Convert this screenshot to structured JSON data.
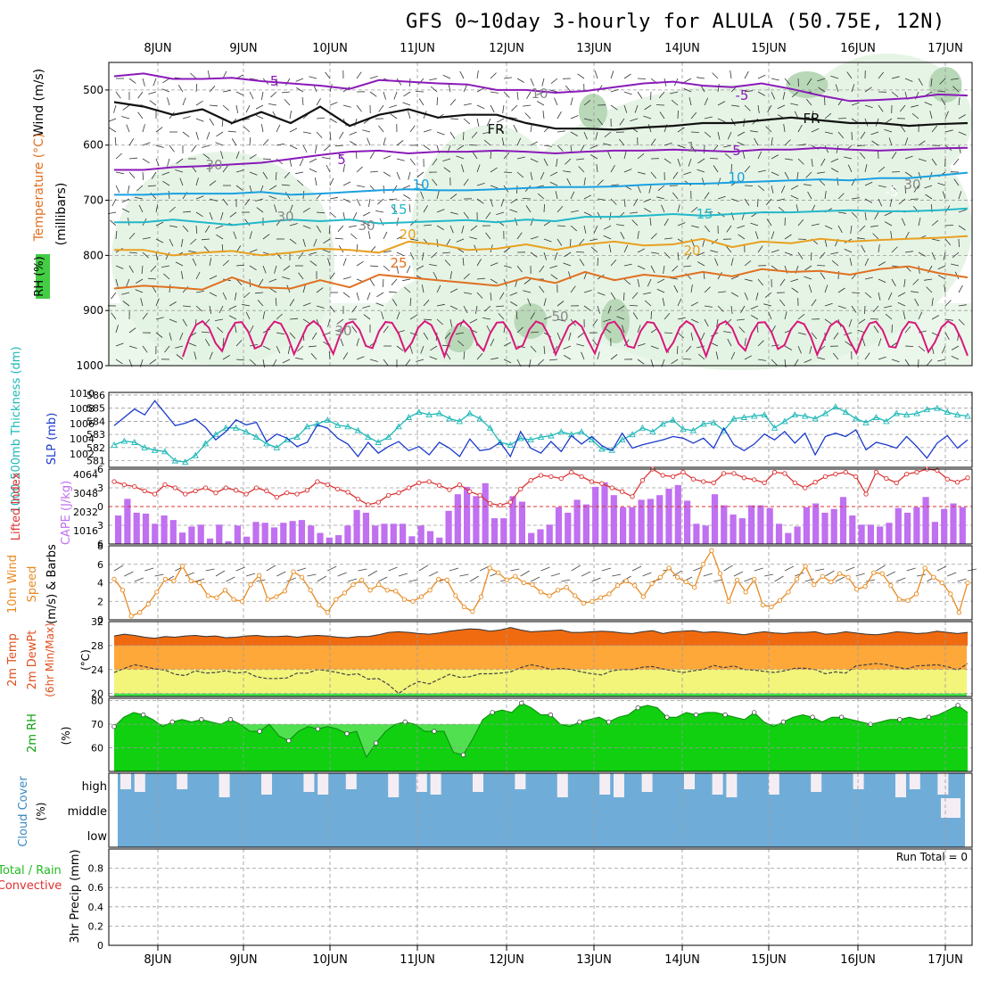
{
  "title": "GFS 0~10day 3-hourly for ALULA (50.75E, 12N)",
  "colors": {
    "grid": "#9a9a9a",
    "purple": "#8a1ab8",
    "black": "#111111",
    "blue": "#1aa0e0",
    "cyan": "#22b8c8",
    "orange": "#e8a020",
    "darkorange": "#e07020",
    "magenta": "#d8187a",
    "rh_light": "#e3f3e3",
    "rh_mid": "#b8d8b8",
    "slp": "#1a3acc",
    "thick": "#20b8b8",
    "li": "#dd3333",
    "cape": "#c070f0",
    "wind": "#e88a20",
    "cloud": "#6fadd8",
    "rh2m": "#10d010"
  },
  "chart_data": {
    "type": "meteogram",
    "x_axis": {
      "labels": [
        "8JUN",
        "9JUN",
        "10JUN",
        "11JUN",
        "12JUN",
        "13JUN",
        "14JUN",
        "15JUN",
        "16JUN",
        "17JUN"
      ]
    },
    "panels": [
      {
        "name": "upper-air",
        "ylabels": [
          "Wind (m/s)",
          "Temperature (°C)",
          "RH (%)"
        ],
        "yunit": "(millibars)",
        "ylim": [
          1000,
          450
        ],
        "yticks": [
          "500",
          "600",
          "700",
          "800",
          "900",
          "1000"
        ],
        "contour_labels": [
          "-5",
          "-5",
          "-5",
          "FR",
          "FR",
          "5",
          "5",
          "10",
          "10",
          "15",
          "15",
          "20",
          "20",
          "25",
          "10",
          "30",
          "30",
          "30",
          "30",
          "50",
          "30",
          "1"
        ],
        "isotherms": [
          {
            "label": "-5",
            "values": [
              475,
              470,
              480,
              480,
              478,
              484,
              488,
              492,
              498,
              482,
              485,
              488,
              490,
              500,
              500,
              505,
              502,
              495,
              488,
              485,
              492,
              495,
              488,
              498,
              510,
              520,
              518,
              515,
              508,
              510
            ]
          },
          {
            "label": "FR",
            "values": [
              522,
              530,
              545,
              535,
              560,
              540,
              560,
              530,
              565,
              545,
              535,
              550,
              545,
              545,
              560,
              570,
              570,
              572,
              568,
              565,
              560,
              560,
              555,
              550,
              555,
              560,
              560,
              565,
              562,
              560
            ]
          },
          {
            "label": "5",
            "values": [
              645,
              645,
              640,
              638,
              635,
              632,
              625,
              618,
              612,
              610,
              615,
              612,
              612,
              610,
              612,
              615,
              612,
              610,
              610,
              608,
              610,
              612,
              608,
              608,
              605,
              608,
              610,
              608,
              606,
              605
            ]
          },
          {
            "label": "10",
            "values": [
              690,
              690,
              688,
              688,
              688,
              685,
              690,
              688,
              685,
              682,
              680,
              682,
              682,
              680,
              678,
              676,
              676,
              675,
              672,
              670,
              670,
              668,
              666,
              664,
              662,
              664,
              660,
              660,
              655,
              650
            ]
          },
          {
            "label": "15",
            "values": [
              740,
              740,
              735,
              740,
              745,
              740,
              735,
              738,
              735,
              742,
              740,
              738,
              736,
              740,
              735,
              738,
              730,
              730,
              728,
              725,
              728,
              725,
              722,
              722,
              720,
              718,
              720,
              720,
              718,
              715
            ]
          },
          {
            "label": "20",
            "values": [
              790,
              790,
              800,
              795,
              792,
              800,
              795,
              788,
              790,
              795,
              775,
              780,
              790,
              788,
              780,
              790,
              780,
              775,
              782,
              780,
              770,
              785,
              775,
              778,
              770,
              775,
              772,
              770,
              768,
              765
            ]
          },
          {
            "label": "25",
            "values": [
              860,
              855,
              858,
              862,
              840,
              858,
              860,
              845,
              858,
              835,
              840,
              845,
              850,
              855,
              840,
              850,
              830,
              845,
              835,
              840,
              830,
              838,
              825,
              830,
              828,
              835,
              825,
              820,
              832,
              840
            ]
          }
        ]
      },
      {
        "name": "slp-thickness",
        "ylabels": [
          "1000-500mb Thickness (dm)",
          "SLP (mb)"
        ],
        "left_ticks": [
          "586",
          "585",
          "584",
          "583",
          "582",
          "581"
        ],
        "right_ticks": [
          "1010",
          "1008",
          "1006",
          "1004",
          "1002"
        ],
        "slp_mb": [
          1006.5,
          1007.5,
          1008.5,
          1007.8,
          1009.5,
          1008.0,
          1006.5,
          1006.8,
          1007.3,
          1006.3,
          1004.8,
          1005.8,
          1007.2,
          1006.6,
          1006.9,
          1004.6,
          1005.5,
          1005.0,
          1004.0,
          1004.5,
          1006.6,
          1006.2,
          1005.0,
          1004.3,
          1002.8,
          1004.5,
          1003.2,
          1004.0,
          1004.6,
          1003.5,
          1004.0,
          1003.0,
          1004.5,
          1003.8,
          1002.8,
          1004.9,
          1003.5,
          1003.7,
          1004.5,
          1002.8,
          1005.8,
          1003.8,
          1003.2,
          1004.6,
          1003.4,
          1005.3,
          1004.3,
          1005.2,
          1004.1,
          1003.5,
          1005.6,
          1003.8,
          1004.2,
          1004.5,
          1004.8,
          1005.2,
          1005.0,
          1004.4,
          1005.0,
          1003.8,
          1006.2,
          1004.2,
          1003.5,
          1004.3,
          1005.5,
          1004.8,
          1005.8,
          1004.4,
          1005.6,
          1003.0,
          1005.2,
          1005.6,
          1005.2,
          1006.0,
          1003.6,
          1004.5,
          1004.2,
          1003.8,
          1005.2,
          1004.0,
          1002.6,
          1004.4,
          1005.3,
          1003.8,
          1004.8
        ],
        "thickness_dm": [
          582.2,
          582.5,
          582.4,
          582.0,
          581.8,
          581.7,
          581.0,
          580.9,
          581.4,
          582.3,
          583.0,
          583.5,
          583.5,
          583.2,
          582.8,
          582.3,
          582.0,
          582.6,
          582.8,
          583.6,
          583.8,
          584.1,
          583.7,
          583.6,
          583.3,
          582.8,
          582.4,
          582.8,
          583.6,
          584.3,
          584.7,
          584.5,
          584.6,
          584.2,
          584.0,
          584.6,
          584.2,
          583.5,
          582.4,
          582.2,
          582.7,
          582.6,
          582.8,
          582.9,
          583.2,
          583.0,
          583.2,
          582.6,
          581.9,
          581.8,
          582.6,
          583.0,
          583.5,
          583.2,
          583.8,
          584.1,
          583.4,
          583.3,
          583.8,
          583.9,
          583.3,
          584.2,
          584.3,
          584.4,
          584.5,
          583.5,
          584.0,
          584.5,
          584.4,
          584.2,
          584.6,
          585.1,
          584.7,
          584.2,
          583.9,
          584.3,
          584.0,
          584.6,
          584.5,
          584.6,
          584.9,
          585.0,
          584.7,
          584.5,
          584.4
        ]
      },
      {
        "name": "li-cape",
        "ylabels": [
          "Lifted Index",
          "CAPE (J/kg)"
        ],
        "left_ticks": [
          "-6",
          "-3",
          "0",
          "3",
          "6"
        ],
        "right_ticks": [
          "4064",
          "3048",
          "2032",
          "1016"
        ],
        "lifted_index": [
          -4.0,
          -3.5,
          -3.2,
          -2.5,
          -2.0,
          -3.5,
          -3.0,
          -2.0,
          -2.5,
          -3.0,
          -2.2,
          -3.0,
          -2.6,
          -2.0,
          -3.0,
          -2.5,
          -1.5,
          -2.2,
          -2.0,
          -2.6,
          -4.0,
          -3.5,
          -2.8,
          -2.3,
          -1.2,
          -0.3,
          -0.7,
          -1.8,
          -2.2,
          -3.0,
          -3.8,
          -4.0,
          -3.4,
          -2.7,
          -3.5,
          -2.4,
          -1.8,
          -0.5,
          -0.2,
          -0.7,
          -2.8,
          -4.2,
          -5.0,
          -4.8,
          -4.5,
          -5.5,
          -4.8,
          -4.0,
          -3.7,
          -3.0,
          -2.4,
          -1.6,
          -4.2,
          -6.0,
          -5.0,
          -4.8,
          -5.5,
          -4.4,
          -4.0,
          -3.8,
          -5.3,
          -5.3,
          -4.6,
          -4.3,
          -3.8,
          -5.5,
          -5.3,
          -3.8,
          -3.0,
          -3.9,
          -4.8,
          -5.2,
          -5.5,
          -4.8,
          -2.0,
          -5.5,
          -4.5,
          -3.8,
          -5.2,
          -5.5,
          -6.0,
          -5.8,
          -4.4,
          -3.9,
          -4.6
        ],
        "cape_jkg": [
          1550,
          2450,
          1700,
          1650,
          1100,
          1550,
          1300,
          620,
          950,
          1050,
          300,
          1050,
          150,
          1000,
          400,
          1200,
          1150,
          900,
          1150,
          1250,
          1300,
          1000,
          600,
          350,
          480,
          1000,
          1850,
          1700,
          1000,
          1100,
          1100,
          1100,
          420,
          1000,
          700,
          350,
          1800,
          2700,
          3100,
          2600,
          3300,
          1400,
          1400,
          2600,
          2300,
          600,
          800,
          1050,
          2000,
          1700,
          2400,
          2150,
          3100,
          3350,
          2650,
          2000,
          2000,
          2400,
          2450,
          2650,
          3000,
          3200,
          2350,
          1100,
          1000,
          2700,
          2100,
          1600,
          1400,
          2100,
          2100,
          1950,
          1100,
          600,
          950,
          2000,
          2200,
          1700,
          1900,
          2550,
          1550,
          1050,
          1050,
          950,
          1150,
          1950,
          1700,
          2000,
          2550,
          1200,
          1900,
          2200,
          2000
        ],
        "li_ylim": [
          6,
          -6
        ],
        "cape_ylim": [
          0,
          4064
        ]
      },
      {
        "name": "wind10m",
        "ylabels": [
          "10m Wind",
          "Speed",
          "(m/s) & Barbs"
        ],
        "ticks": [
          "8",
          "6",
          "4",
          "2",
          "0"
        ],
        "speed_ms": [
          4.4,
          3.2,
          0.4,
          0.8,
          1.7,
          3.0,
          4.4,
          4.2,
          5.8,
          4.2,
          4.0,
          2.6,
          2.4,
          3.2,
          2.2,
          2.0,
          3.8,
          4.8,
          2.2,
          2.5,
          3.1,
          5.2,
          4.6,
          3.2,
          1.6,
          0.8,
          2.2,
          2.9,
          3.8,
          4.3,
          3.2,
          3.8,
          3.2,
          3.1,
          2.2,
          2.0,
          2.5,
          3.2,
          4.4,
          4.3,
          2.6,
          1.4,
          0.9,
          2.5,
          5.6,
          5.1,
          4.3,
          4.7,
          4.0,
          3.8,
          3.0,
          2.6,
          3.2,
          3.5,
          2.6,
          1.8,
          2.0,
          2.4,
          2.8,
          3.7,
          4.2,
          3.7,
          2.5,
          3.9,
          4.6,
          5.6,
          4.6,
          4.1,
          3.5,
          6.0,
          7.5,
          5.0,
          2.0,
          4.3,
          3.0,
          4.4,
          1.6,
          1.4,
          2.1,
          3.0,
          4.4,
          5.8,
          3.8,
          4.7,
          4.1,
          5.0,
          4.6,
          3.3,
          3.6,
          5.1,
          5.0,
          3.7,
          2.2,
          2.1,
          2.8,
          5.6,
          4.6,
          4.0,
          2.8,
          0.8,
          4.0
        ],
        "ylim": [
          0,
          8
        ]
      },
      {
        "name": "temp2m",
        "ylabels": [
          "2m Temp",
          "2m DewPt",
          "(6hr Min/Max)"
        ],
        "unit": "(°C)",
        "ticks": [
          "32",
          "28",
          "24",
          "20"
        ],
        "temp_c": [
          29.6,
          29.9,
          29.7,
          29.4,
          29.2,
          29.5,
          29.4,
          29.6,
          29.7,
          29.5,
          29.6,
          29.3,
          29.4,
          29.6,
          29.7,
          29.5,
          29.5,
          29.6,
          29.4,
          29.6,
          29.7,
          29.6,
          29.4,
          29.3,
          29.5,
          29.5,
          29.8,
          30.2,
          30.3,
          30.2,
          30.0,
          29.9,
          30.1,
          30.4,
          30.6,
          30.8,
          30.7,
          30.4,
          30.6,
          31.0,
          30.6,
          30.3,
          30.4,
          30.5,
          30.6,
          30.2,
          30.2,
          30.3,
          30.4,
          30.3,
          30.1,
          30.0,
          30.3,
          30.5,
          30.0,
          30.3,
          30.4,
          30.5,
          30.2,
          30.3,
          30.2,
          30.0,
          29.8,
          30.1,
          30.3,
          30.1,
          30.0,
          30.2,
          30.2,
          30.3,
          29.9,
          30.0,
          30.3,
          30.1,
          29.9,
          29.8,
          30.0,
          30.3,
          30.2,
          30.0,
          30.1,
          30.4,
          30.2,
          30.0,
          30.2
        ],
        "dewpt_c": [
          23.5,
          24.2,
          24.8,
          24.5,
          24.1,
          23.9,
          23.2,
          23.0,
          23.8,
          23.4,
          23.5,
          23.8,
          23.4,
          23.6,
          22.8,
          22.5,
          22.5,
          22.6,
          23.4,
          23.4,
          24.0,
          23.8,
          23.5,
          23.1,
          23.3,
          22.4,
          22.5,
          21.5,
          20.0,
          21.2,
          22.0,
          21.6,
          22.4,
          23.2,
          22.7,
          22.8,
          23.3,
          23.3,
          23.4,
          23.6,
          24.3,
          24.8,
          24.5,
          24.0,
          24.2,
          24.0,
          23.6,
          23.3,
          23.1,
          23.8,
          24.0,
          24.0,
          24.4,
          24.5,
          24.1,
          23.8,
          23.5,
          23.8,
          24.0,
          24.7,
          24.3,
          24.6,
          24.0,
          23.9,
          23.7,
          23.5,
          23.8,
          24.2,
          24.2,
          24.0,
          23.3,
          23.6,
          23.4,
          24.6,
          24.8,
          25.0,
          24.8,
          24.4,
          24.1,
          24.6,
          24.7,
          24.8,
          24.5,
          23.9,
          25.0
        ],
        "ylim": [
          19.5,
          32
        ]
      },
      {
        "name": "rh2m",
        "ylabels": [
          "2m RH"
        ],
        "unit": "(%)",
        "ticks": [
          "80",
          "70",
          "60"
        ],
        "rh_pct": [
          69,
          73,
          75,
          74,
          72,
          69,
          71,
          72,
          71,
          72,
          71,
          70,
          72,
          70,
          67,
          67,
          70,
          65,
          63,
          67,
          69,
          68,
          69,
          68,
          66,
          67,
          56,
          62,
          67,
          70,
          71,
          70,
          67,
          67,
          67,
          58,
          57,
          64,
          72,
          75,
          76,
          75,
          79,
          77,
          74,
          74,
          70,
          69,
          71,
          72,
          73,
          71,
          73,
          74,
          77,
          78,
          77,
          73,
          73,
          75,
          74,
          75,
          75,
          74,
          73,
          72,
          75,
          71,
          69,
          71,
          73,
          74,
          73,
          71,
          73,
          73,
          72,
          71,
          70,
          71,
          72,
          72,
          73,
          72,
          73,
          74,
          76,
          78,
          75
        ]
      },
      {
        "name": "cloud-cover",
        "ylabels": [
          "Cloud Cover"
        ],
        "unit": "(%)",
        "levels": [
          "high",
          "middle",
          "low"
        ]
      },
      {
        "name": "precip",
        "ylabels": [
          "Total / Rain",
          "Convective",
          "3hr Precip (mm)"
        ],
        "ticks": [
          "0.8",
          "0.6",
          "0.4",
          "0.2",
          "0"
        ],
        "run_total_label": "Run Total = 0",
        "ylim": [
          0,
          1.0
        ]
      }
    ]
  }
}
